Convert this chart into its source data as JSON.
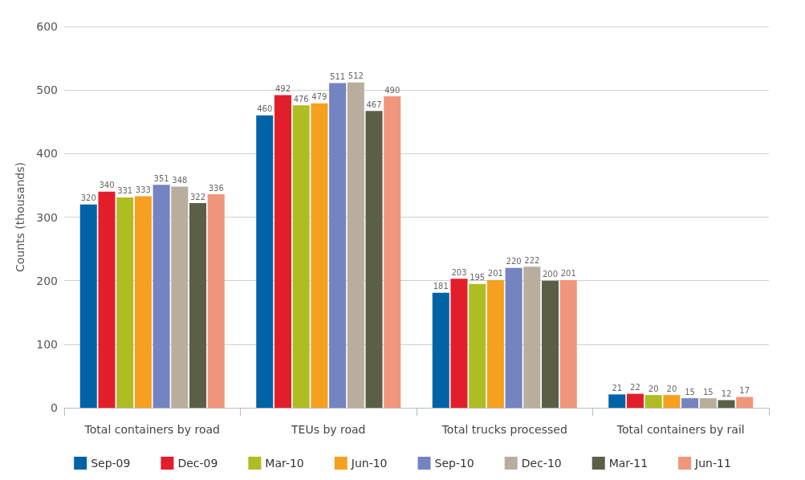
{
  "chart_data": {
    "type": "bar",
    "ylabel": "Counts (thousands)",
    "categories": [
      "Total containers by road",
      "TEUs by road",
      "Total trucks processed",
      "Total containers by rail"
    ],
    "series": [
      {
        "name": "Sep-09",
        "color": "#0063a6",
        "values": [
          320,
          460,
          181,
          21
        ]
      },
      {
        "name": "Dec-09",
        "color": "#e31e2b",
        "values": [
          340,
          492,
          203,
          22
        ]
      },
      {
        "name": "Mar-10",
        "color": "#aebd22",
        "values": [
          331,
          476,
          195,
          20
        ]
      },
      {
        "name": "Jun-10",
        "color": "#f5a01f",
        "values": [
          333,
          479,
          201,
          20
        ]
      },
      {
        "name": "Sep-10",
        "color": "#7484c0",
        "values": [
          351,
          511,
          220,
          15
        ]
      },
      {
        "name": "Dec-10",
        "color": "#b8ae9e",
        "values": [
          348,
          512,
          222,
          15
        ]
      },
      {
        "name": "Mar-11",
        "color": "#5c5f48",
        "values": [
          322,
          467,
          200,
          12
        ]
      },
      {
        "name": "Jun-11",
        "color": "#f0967a",
        "values": [
          336,
          490,
          201,
          17
        ]
      }
    ],
    "ylim": [
      0,
      600
    ],
    "yticks": [
      0,
      100,
      200,
      300,
      400,
      500,
      600
    ],
    "grid": "y",
    "legend": "bottom",
    "data_labels": true
  }
}
